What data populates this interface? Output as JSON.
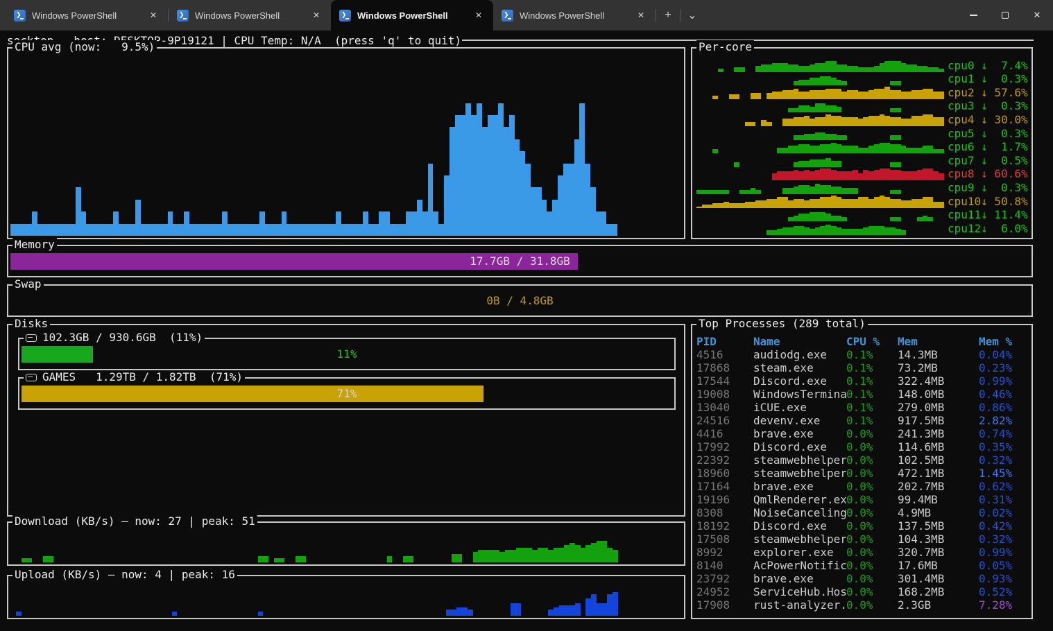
{
  "palette": {
    "terminal_bg": "#0C0C0C",
    "panel_border": "#C8C8C8",
    "cpu_avg_bar": "#3B9AE8",
    "green_text": "#16C60C",
    "green_bar": "#13A10E",
    "yellow_text": "#C19C00",
    "yellow_bar": "#C9A206",
    "red_text": "#E23B3B",
    "red_bar": "#C2162B",
    "upload_bar": "#1344DB",
    "download_bar": "#13A10E",
    "memory_fill": "#8A2699",
    "table_header": "#3A96DD",
    "memp_low": "#2353D4",
    "memp_mid": "#3B78FF",
    "memp_high": "#A24AD6"
  },
  "tabs": {
    "items": [
      {
        "label": "Windows PowerShell"
      },
      {
        "label": "Windows PowerShell"
      },
      {
        "label": "Windows PowerShell"
      },
      {
        "label": "Windows PowerShell"
      }
    ],
    "active_index": 2,
    "new_tab_icon": "+",
    "dropdown_icon": "⌄",
    "close_icon": "✕"
  },
  "window_controls": {
    "minimize": "–",
    "maximize": "□",
    "close": "✕"
  },
  "app": {
    "title_line": "socktop — host: DESKTOP-9P19121 | CPU Temp: N/A  (press 'q' to quit)"
  },
  "cpu": {
    "title": "CPU avg (now:   9.5%)",
    "now_percent": 9.5,
    "spark": "1111211111114211111211131111121121111112111111211121111111112111121122111223262159aabab9aab9a876443235668b642211",
    "spark_scale": 15
  },
  "percore": {
    "title": "Per-core",
    "spark_scale": 9,
    "cores": [
      {
        "name": "cpu0",
        "label": "cpu0 ↓  7.4%",
        "percent": 7.4,
        "color": "green",
        "spark": "0000200330045566655445667755443334677765544332"
      },
      {
        "name": "cpu1",
        "label": "cpu1 ↓  0.3%",
        "percent": 0.3,
        "color": "green",
        "spark": "0000000000000000003445566543000000003300000000"
      },
      {
        "name": "cpu2",
        "label": "cpu2 ↓ 57.6%",
        "percent": 57.6,
        "color": "yellow",
        "spark": "0002003300440455667556667775665567786655667755"
      },
      {
        "name": "cpu3",
        "label": "cpu3 ↓  0.3%",
        "percent": 0.3,
        "color": "green",
        "spark": "0000000000000000033554665540000000003300000000"
      },
      {
        "name": "cpu4",
        "label": "cpu4 ↓ 30.0%",
        "percent": 30.0,
        "color": "yellow",
        "spark": "0000000003304300556675668776665677876655778866"
      },
      {
        "name": "cpu5",
        "label": "cpu5 ↓  0.3%",
        "percent": 0.3,
        "color": "green",
        "spark": "0000000000000000003344554433000000003300000000"
      },
      {
        "name": "cpu6",
        "label": "cpu6 ↓  1.7%",
        "percent": 1.7,
        "color": "green",
        "spark": "0003000000000004455665566765554456776654445533"
      },
      {
        "name": "cpu7",
        "label": "cpu7 ↓  0.5%",
        "percent": 0.5,
        "color": "green",
        "spark": "0000000300000000003445556440000000003300000000"
      },
      {
        "name": "cpu8",
        "label": "cpu8 ↓ 60.6%",
        "percent": 60.6,
        "color": "red",
        "spark": "0000000000000056667676788766675767887766678865"
      },
      {
        "name": "cpu9",
        "label": "cpu9 ↓  0.3%",
        "percent": 0.3,
        "color": "green",
        "spark": "3333330033430000445665766554440000003300000000"
      },
      {
        "name": "cpu10",
        "label": "cpu10↓ 50.8%",
        "percent": 50.8,
        "color": "yellow",
        "spark": "1223343334455667756656677876667767876655667744"
      },
      {
        "name": "cpu11",
        "label": "cpu11↓ 11.4%",
        "percent": 11.4,
        "color": "green",
        "spark": "0000000000000000034556665443000000003300034300"
      },
      {
        "name": "cpu12",
        "label": "cpu12↓  6.0%",
        "percent": 6.0,
        "color": "green",
        "spark": "0000000000000334556654567654444566655430000000"
      }
    ]
  },
  "memory": {
    "title": "Memory",
    "label": "17.7GB / 31.8GB",
    "percent": 55.7
  },
  "swap": {
    "title": "Swap",
    "label": "0B / 4.8GB",
    "percent": 0
  },
  "disks": {
    "title": "Disks",
    "items": [
      {
        "title": "102.3GB / 930.6GB  (11%)",
        "label": "11%",
        "percent": 11,
        "fill": "#17A81F",
        "label_color": "#16C60C"
      },
      {
        "title": "GAMES   1.29TB / 1.82TB  (71%)",
        "label": "71%",
        "percent": 71,
        "fill": "#C9A206",
        "label_color": "#D8D8D8"
      }
    ]
  },
  "download": {
    "title": "Download (KB/s) — now: 27 | peak: 51",
    "now": 27,
    "peak": 51,
    "spark": "0022003300000000000000000000000000000000000000330220033000000000000000300330000000440056666566777677677898789aa76",
    "spark_scale": 15
  },
  "upload": {
    "title": "Upload (KB/s) — now: 4 | peak: 16",
    "now": 4,
    "peak": 16,
    "spark": "0200000000000000000000000000002000000000000000200000000000000000000000000000000003344300000006600000345556 8a66ab",
    "spark_scale": 15
  },
  "processes": {
    "title": "Top Processes (289 total)",
    "total": 289,
    "columns": [
      "PID",
      "Name",
      "CPU %",
      "Mem",
      "Mem %"
    ],
    "rows": [
      [
        "4516",
        "audiodg.exe",
        "0.1%",
        "14.3MB",
        "0.04%",
        "low"
      ],
      [
        "17868",
        "steam.exe",
        "0.1%",
        "73.2MB",
        "0.23%",
        "low"
      ],
      [
        "17544",
        "Discord.exe",
        "0.1%",
        "322.4MB",
        "0.99%",
        "low"
      ],
      [
        "19008",
        "WindowsTermina",
        "0.1%",
        "148.0MB",
        "0.46%",
        "low"
      ],
      [
        "13040",
        "iCUE.exe",
        "0.1%",
        "279.0MB",
        "0.86%",
        "low"
      ],
      [
        "24516",
        "devenv.exe",
        "0.1%",
        "917.5MB",
        "2.82%",
        "mid"
      ],
      [
        "4416",
        "brave.exe",
        "0.0%",
        "241.3MB",
        "0.74%",
        "low"
      ],
      [
        "17992",
        "Discord.exe",
        "0.0%",
        "114.6MB",
        "0.35%",
        "low"
      ],
      [
        "22392",
        "steamwebhelper",
        "0.0%",
        "102.5MB",
        "0.32%",
        "low"
      ],
      [
        "18960",
        "steamwebhelper",
        "0.0%",
        "472.1MB",
        "1.45%",
        "mid"
      ],
      [
        "17164",
        "brave.exe",
        "0.0%",
        "202.7MB",
        "0.62%",
        "low"
      ],
      [
        "19196",
        "QmlRenderer.ex",
        "0.0%",
        "99.4MB",
        "0.31%",
        "low"
      ],
      [
        "8308",
        "NoiseCanceling",
        "0.0%",
        "4.9MB",
        "0.02%",
        "low"
      ],
      [
        "18192",
        "Discord.exe",
        "0.0%",
        "137.5MB",
        "0.42%",
        "low"
      ],
      [
        "17508",
        "steamwebhelper",
        "0.0%",
        "104.3MB",
        "0.32%",
        "low"
      ],
      [
        "8992",
        "explorer.exe",
        "0.0%",
        "320.7MB",
        "0.99%",
        "low"
      ],
      [
        "8140",
        "AcPowerNotific",
        "0.0%",
        "17.6MB",
        "0.05%",
        "low"
      ],
      [
        "23792",
        "brave.exe",
        "0.0%",
        "301.4MB",
        "0.93%",
        "low"
      ],
      [
        "24952",
        "ServiceHub.Hos",
        "0.0%",
        "168.2MB",
        "0.52%",
        "low"
      ],
      [
        "17908",
        "rust-analyzer.",
        "0.0%",
        "2.3GB",
        "7.28%",
        "high"
      ]
    ]
  }
}
